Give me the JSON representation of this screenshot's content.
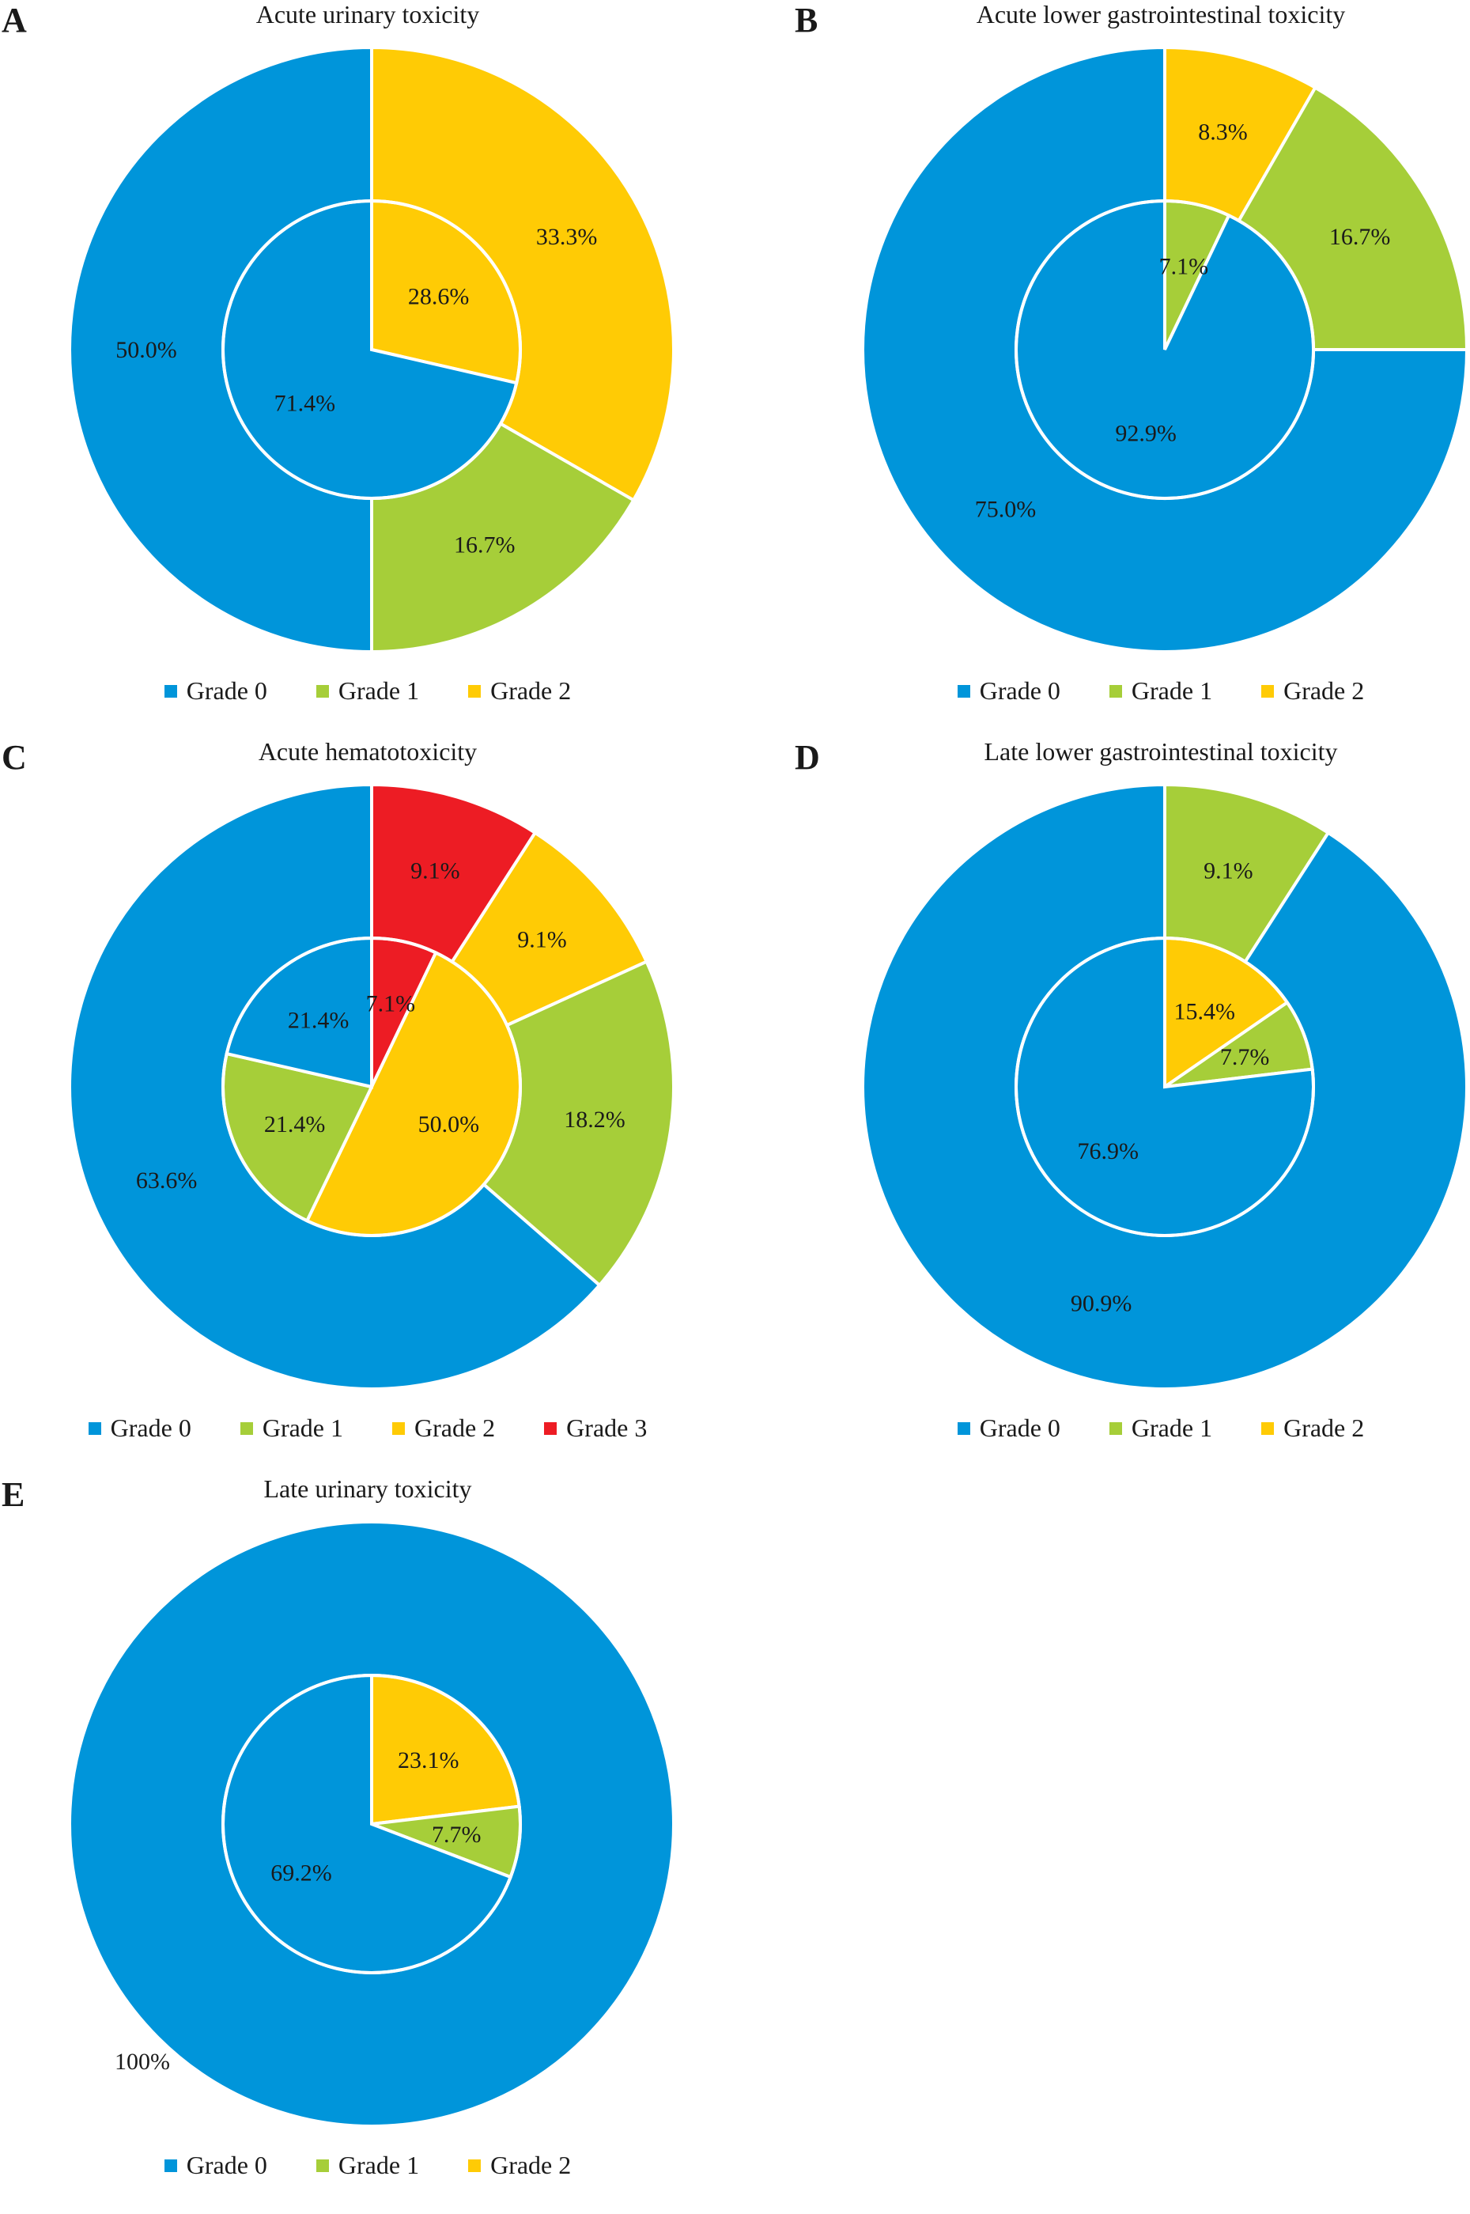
{
  "colors": {
    "Grade 0": "#0095DA",
    "Grade 1": "#A6CE39",
    "Grade 2": "#FFCB05",
    "Grade 3": "#ED1C24"
  },
  "chart_data": [
    {
      "type": "pie",
      "panel": "A",
      "title": "Acute urinary toxicity",
      "legend": [
        "Grade 0",
        "Grade 1",
        "Grade 2"
      ],
      "outer": {
        "labels": [
          "Grade 2",
          "Grade 1",
          "Grade 0"
        ],
        "values": [
          33.3,
          16.7,
          50.0
        ],
        "display": [
          "33.3%",
          "16.7%",
          "50.0%"
        ]
      },
      "inner": {
        "labels": [
          "Grade 2",
          "Grade 0"
        ],
        "values": [
          28.6,
          71.4
        ],
        "display": [
          "28.6%",
          "71.4%"
        ]
      }
    },
    {
      "type": "pie",
      "panel": "B",
      "title": "Acute lower gastrointestinal toxicity",
      "legend": [
        "Grade 0",
        "Grade 1",
        "Grade 2"
      ],
      "outer": {
        "labels": [
          "Grade 2",
          "Grade 1",
          "Grade 0"
        ],
        "values": [
          8.3,
          16.7,
          75.0
        ],
        "display": [
          "8.3%",
          "16.7%",
          "75.0%"
        ]
      },
      "inner": {
        "labels": [
          "Grade 1",
          "Grade 0"
        ],
        "values": [
          7.1,
          92.9
        ],
        "display": [
          "7.1%",
          "92.9%"
        ]
      }
    },
    {
      "type": "pie",
      "panel": "C",
      "title": "Acute hematotoxicity",
      "legend": [
        "Grade 0",
        "Grade 1",
        "Grade 2",
        "Grade 3"
      ],
      "outer": {
        "labels": [
          "Grade 3",
          "Grade 2",
          "Grade 1",
          "Grade 0"
        ],
        "values": [
          9.1,
          9.1,
          18.2,
          63.6
        ],
        "display": [
          "9.1%",
          "9.1%",
          "18.2%",
          "63.6%"
        ]
      },
      "inner": {
        "labels": [
          "Grade 3",
          "Grade 2",
          "Grade 1",
          "Grade 0"
        ],
        "values": [
          7.1,
          50.0,
          21.4,
          21.4
        ],
        "display": [
          "7.1%",
          "50.0%",
          "21.4%",
          "21.4%"
        ]
      }
    },
    {
      "type": "pie",
      "panel": "D",
      "title": "Late lower gastrointestinal toxicity",
      "legend": [
        "Grade 0",
        "Grade 1",
        "Grade 2"
      ],
      "outer": {
        "labels": [
          "Grade 1",
          "Grade 0"
        ],
        "values": [
          9.1,
          90.9
        ],
        "display": [
          "9.1%",
          "90.9%"
        ]
      },
      "inner": {
        "labels": [
          "Grade 2",
          "Grade 1",
          "Grade 0"
        ],
        "values": [
          15.4,
          7.7,
          76.9
        ],
        "display": [
          "15.4%",
          "7.7%",
          "76.9%"
        ]
      }
    },
    {
      "type": "pie",
      "panel": "E",
      "title": "Late urinary toxicity",
      "legend": [
        "Grade 0",
        "Grade 1",
        "Grade 2"
      ],
      "outer": {
        "labels": [
          "Grade 0"
        ],
        "values": [
          100
        ],
        "display": [
          "100%"
        ]
      },
      "inner": {
        "labels": [
          "Grade 2",
          "Grade 1",
          "Grade 0"
        ],
        "values": [
          23.1,
          7.7,
          69.2
        ],
        "display": [
          "23.1%",
          "7.7%",
          "69.2%"
        ]
      }
    }
  ]
}
